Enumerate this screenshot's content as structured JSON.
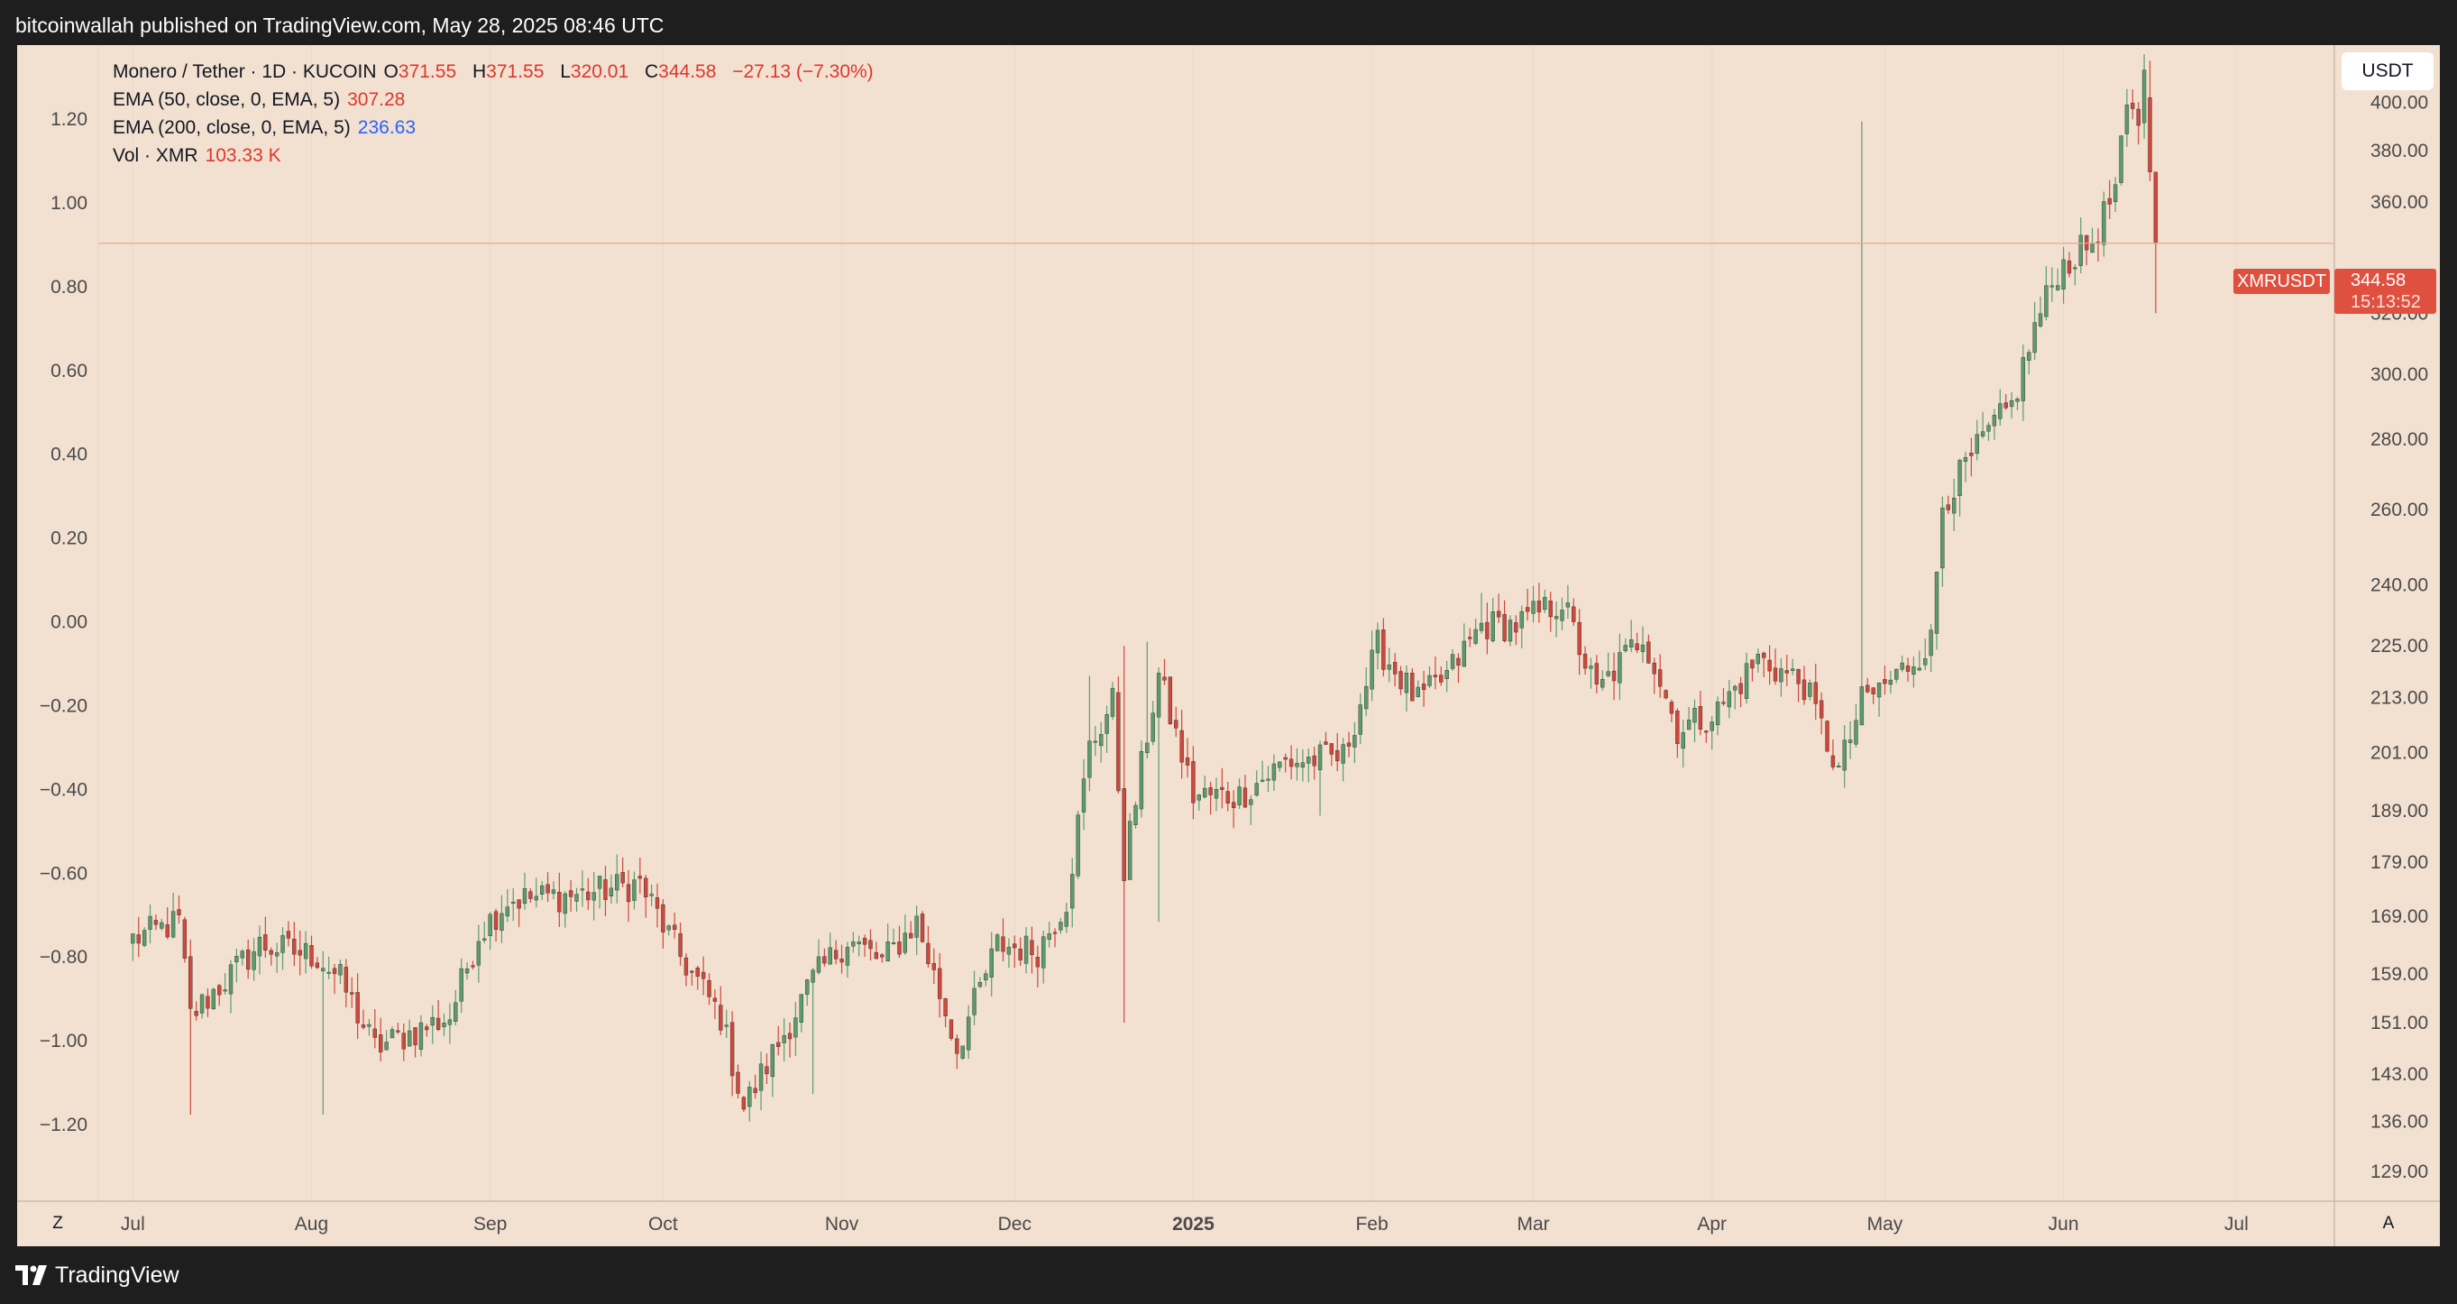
{
  "header": {
    "published_text": "bitcoinwallah published on TradingView.com, May 28, 2025 08:46 UTC"
  },
  "footer": {
    "brand": "TradingView"
  },
  "legend": {
    "instrument": "Monero / Tether · 1D · KUCOIN",
    "o_label": "O",
    "o_value": "371.55",
    "h_label": "H",
    "h_value": "371.55",
    "l_label": "L",
    "l_value": "320.01",
    "c_label": "C",
    "c_value": "344.58",
    "change": "−27.13 (−7.30%)",
    "ema50_label": "EMA (50, close, 0, EMA, 5)",
    "ema50_value": "307.28",
    "ema200_label": "EMA (200, close, 0, EMA, 5)",
    "ema200_value": "236.63",
    "vol_label": "Vol · XMR",
    "vol_value": "103.33 K"
  },
  "controls": {
    "currency_button": "USDT",
    "left_corner_button": "Z",
    "right_corner_button": "A"
  },
  "price_marker": {
    "symbol": "XMRUSDT",
    "price": "344.58",
    "countdown": "15:13:52"
  },
  "colors": {
    "up": "#5b9c6a",
    "down": "#d0473b",
    "background": "#f2e1d1",
    "price_line": "#e8a88b"
  },
  "chart_data": {
    "type": "candlestick",
    "symbol": "XMRUSDT",
    "scale": "log",
    "timeframe": "1D",
    "left_axis": {
      "ticks": [
        "1.20",
        "1.00",
        "0.80",
        "0.60",
        "0.40",
        "0.20",
        "0.00",
        "−0.20",
        "−0.40",
        "−0.60",
        "−0.80",
        "−1.00",
        "−1.20"
      ],
      "values": [
        1.2,
        1.0,
        0.8,
        0.6,
        0.4,
        0.2,
        0.0,
        -0.2,
        -0.4,
        -0.6,
        -0.8,
        -1.0,
        -1.2
      ]
    },
    "right_axis": {
      "ticks": [
        "400.00",
        "380.00",
        "360.00",
        "320.00",
        "300.00",
        "280.00",
        "260.00",
        "240.00",
        "225.00",
        "213.00",
        "201.00",
        "189.00",
        "179.00",
        "169.00",
        "159.00",
        "151.00",
        "143.00",
        "136.00",
        "129.00"
      ],
      "values": [
        400,
        380,
        360,
        320,
        300,
        280,
        260,
        240,
        225,
        213,
        201,
        189,
        179,
        169,
        159,
        151,
        143,
        136,
        129
      ],
      "range": [
        125,
        425
      ]
    },
    "x_axis": {
      "labels": [
        "Jul",
        "Aug",
        "Sep",
        "Oct",
        "Nov",
        "Dec",
        "2025",
        "Feb",
        "Mar",
        "Apr",
        "May",
        "Jun",
        "Jul"
      ],
      "bold": [
        false,
        false,
        false,
        false,
        false,
        false,
        true,
        false,
        false,
        false,
        false,
        false,
        false
      ],
      "days": [
        0,
        31,
        62,
        92,
        123,
        153,
        184,
        215,
        243,
        274,
        304,
        335,
        365
      ],
      "range": [
        -6,
        382
      ]
    },
    "series_start": "2024-06-25",
    "last_close": 344.58,
    "anchors": [
      [
        0,
        165
      ],
      [
        8,
        168
      ],
      [
        10,
        152
      ],
      [
        14,
        156
      ],
      [
        22,
        164
      ],
      [
        32,
        162
      ],
      [
        36,
        158
      ],
      [
        42,
        147
      ],
      [
        50,
        150
      ],
      [
        55,
        152
      ],
      [
        60,
        166
      ],
      [
        65,
        172
      ],
      [
        78,
        173
      ],
      [
        88,
        175
      ],
      [
        95,
        162
      ],
      [
        102,
        152
      ],
      [
        106,
        138
      ],
      [
        118,
        158
      ],
      [
        124,
        165
      ],
      [
        130,
        161
      ],
      [
        136,
        168
      ],
      [
        143,
        147
      ],
      [
        150,
        164
      ],
      [
        157,
        163
      ],
      [
        162,
        172
      ],
      [
        166,
        202
      ],
      [
        170,
        212
      ],
      [
        172,
        178
      ],
      [
        176,
        205
      ],
      [
        178,
        218
      ],
      [
        184,
        192
      ],
      [
        192,
        192
      ],
      [
        200,
        199
      ],
      [
        210,
        200
      ],
      [
        216,
        225
      ],
      [
        223,
        212
      ],
      [
        228,
        218
      ],
      [
        234,
        230
      ],
      [
        240,
        230
      ],
      [
        248,
        236
      ],
      [
        254,
        214
      ],
      [
        262,
        228
      ],
      [
        268,
        206
      ],
      [
        275,
        210
      ],
      [
        282,
        222
      ],
      [
        290,
        216
      ],
      [
        296,
        197
      ],
      [
        300,
        212
      ],
      [
        306,
        218
      ],
      [
        312,
        226
      ],
      [
        314,
        262
      ],
      [
        322,
        282
      ],
      [
        326,
        290
      ],
      [
        330,
        315
      ],
      [
        334,
        335
      ],
      [
        340,
        345
      ],
      [
        344,
        365
      ],
      [
        346,
        395
      ],
      [
        348,
        392
      ],
      [
        349,
        418
      ],
      [
        350,
        372
      ],
      [
        351,
        344.58
      ]
    ]
  }
}
